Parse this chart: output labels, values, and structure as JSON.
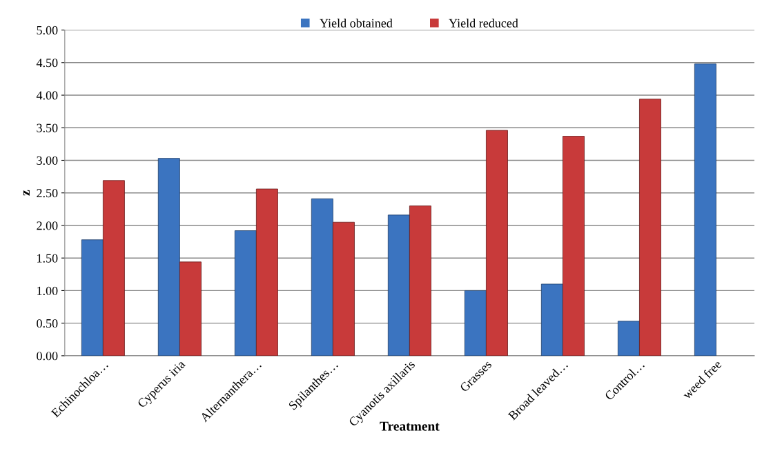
{
  "chart_data": {
    "type": "bar",
    "xlabel": "Treatment",
    "ylabel": "z",
    "categories": [
      "Echinochloa…",
      "Cyperus iria",
      "Alternanthera…",
      "Spilanthes…",
      "Cyanotis axillaris",
      "Grasses",
      "Broad leaved…",
      "Control…",
      "weed free"
    ],
    "series": [
      {
        "name": "Yield obtained",
        "color": "#3b74c0",
        "values": [
          1.78,
          3.03,
          1.92,
          2.41,
          2.16,
          1.0,
          1.1,
          0.53,
          4.48
        ]
      },
      {
        "name": "Yield reduced",
        "color": "#c83a3a",
        "values": [
          2.69,
          1.44,
          2.56,
          2.05,
          2.3,
          3.46,
          3.37,
          3.94,
          null
        ]
      }
    ],
    "ylim": [
      0,
      5
    ],
    "yticks": [
      {
        "value": 0,
        "label": "0.00"
      },
      {
        "value": 0.5,
        "label": "0.50"
      },
      {
        "value": 1,
        "label": "1.00"
      },
      {
        "value": 1.5,
        "label": "1.50"
      },
      {
        "value": 2,
        "label": "2.00"
      },
      {
        "value": 2.5,
        "label": "2.50"
      },
      {
        "value": 3,
        "label": "3.00"
      },
      {
        "value": 3.5,
        "label": "3.50"
      },
      {
        "value": 4,
        "label": "4.00"
      },
      {
        "value": 4.5,
        "label": "4.50"
      },
      {
        "value": 5,
        "label": "5.00"
      }
    ],
    "grid": "y",
    "legend": "top"
  }
}
